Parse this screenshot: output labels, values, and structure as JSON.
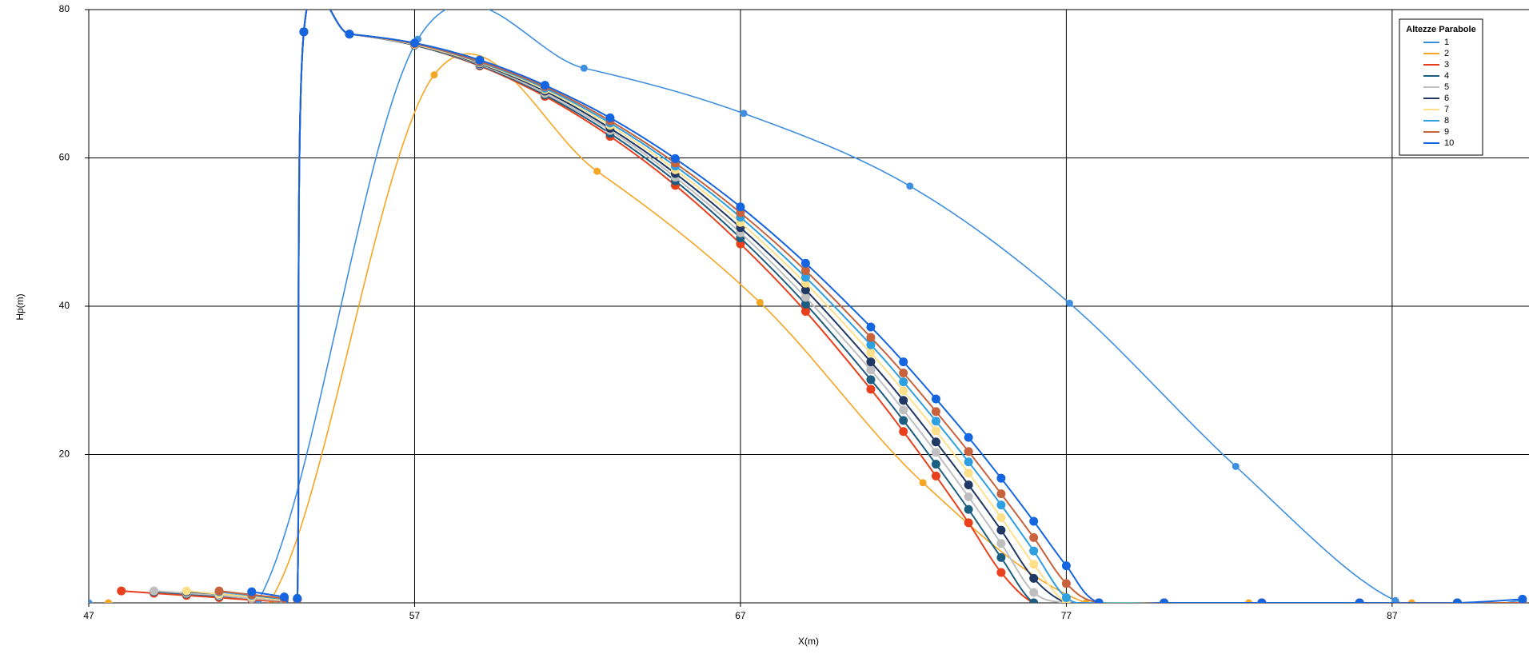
{
  "chart_data": {
    "type": "line",
    "x_label": "X(m)",
    "y_label": "Hp(m)",
    "legend_title": "Altezze Parabole",
    "legend": "upper-right",
    "grid": true,
    "xlim": [
      47,
      91.2
    ],
    "ylim": [
      0,
      80
    ],
    "xticks": [
      47,
      57,
      67,
      77,
      87
    ],
    "yticks": [
      20,
      40,
      60,
      80
    ],
    "x": [
      47,
      48,
      49,
      50,
      51,
      52,
      53,
      53.4,
      53.6,
      55,
      57,
      59,
      61,
      63,
      65,
      67,
      69,
      71,
      72,
      73,
      74,
      75,
      76,
      77,
      78,
      80,
      83,
      86,
      89,
      91
    ],
    "series": [
      {
        "name": "1",
        "color": "#3f8fe0",
        "x": [
          47,
          52.2,
          57.1,
          62.2,
          67.1,
          72.2,
          77.1,
          82.2,
          87.1,
          91
        ],
        "values": [
          0,
          0.3,
          76,
          72.1,
          66,
          56.2,
          40.4,
          18.4,
          0.3,
          0.3
        ]
      },
      {
        "name": "2",
        "color": "#f5a623",
        "x": [
          47.6,
          52.6,
          57.6,
          62.6,
          67.6,
          72.6,
          77.6,
          82.6,
          87.6
        ],
        "values": [
          0,
          0.5,
          71.2,
          58.2,
          40.5,
          16.2,
          0,
          0,
          0
        ]
      },
      {
        "name": "3",
        "color": "#e8401c",
        "values": [
          null,
          1.6,
          1.3,
          1.0,
          0.7,
          0.4,
          0.2,
          0.5,
          77,
          76.7,
          75.2,
          72.4,
          68.3,
          62.9,
          56.3,
          48.4,
          39.3,
          28.8,
          23.1,
          17.1,
          10.8,
          4.1,
          0,
          0,
          0,
          0,
          0,
          0,
          0,
          0
        ]
      },
      {
        "name": "4",
        "color": "#1b5e82",
        "values": [
          null,
          null,
          1.5,
          1.2,
          0.9,
          0.6,
          0.3,
          0.5,
          77,
          76.7,
          75.2,
          72.5,
          68.5,
          63.3,
          56.9,
          49.2,
          40.3,
          30.1,
          24.6,
          18.7,
          12.6,
          6.1,
          0,
          0,
          0,
          0,
          0,
          0,
          0,
          0
        ]
      },
      {
        "name": "5",
        "color": "#bfbfbf",
        "values": [
          null,
          null,
          1.6,
          1.3,
          1.0,
          0.6,
          0.3,
          0.5,
          77,
          76.7,
          75.3,
          72.6,
          68.7,
          63.7,
          57.4,
          49.9,
          41.2,
          31.4,
          26.0,
          20.3,
          14.3,
          8.0,
          1.4,
          0,
          0,
          0,
          0,
          0,
          0,
          0
        ]
      },
      {
        "name": "6",
        "color": "#1f3864",
        "values": [
          null,
          null,
          null,
          1.5,
          1.2,
          0.8,
          0.4,
          0.5,
          77,
          76.7,
          75.3,
          72.7,
          69.0,
          64.0,
          57.9,
          50.6,
          42.2,
          32.5,
          27.3,
          21.7,
          15.9,
          9.8,
          3.3,
          0,
          0,
          0,
          0,
          0,
          0,
          0
        ]
      },
      {
        "name": "7",
        "color": "#ffe08a",
        "values": [
          null,
          null,
          null,
          1.6,
          1.2,
          0.8,
          0.4,
          0.5,
          77,
          76.7,
          75.3,
          72.8,
          69.2,
          64.4,
          58.4,
          51.3,
          43.1,
          33.7,
          28.6,
          23.2,
          17.5,
          11.5,
          5.2,
          0,
          0,
          0,
          0,
          0,
          0,
          0
        ]
      },
      {
        "name": "8",
        "color": "#2e9fe0",
        "values": [
          null,
          null,
          null,
          null,
          1.5,
          1.0,
          0.5,
          0.5,
          77,
          76.7,
          75.4,
          72.9,
          69.4,
          64.7,
          58.9,
          52.0,
          43.9,
          34.8,
          29.8,
          24.5,
          19.0,
          13.2,
          7.0,
          0.7,
          0,
          0,
          0,
          0,
          0,
          0
        ]
      },
      {
        "name": "9",
        "color": "#c8623c",
        "values": [
          null,
          null,
          null,
          null,
          1.6,
          1.1,
          0.6,
          0.5,
          77,
          76.7,
          75.4,
          73.0,
          69.6,
          65.0,
          59.3,
          52.6,
          44.8,
          35.8,
          31.0,
          25.8,
          20.4,
          14.7,
          8.8,
          2.6,
          0,
          0,
          0,
          0,
          0,
          0
        ]
      },
      {
        "name": "10",
        "color": "#1565e0",
        "values": [
          null,
          null,
          null,
          null,
          null,
          1.5,
          0.8,
          0.6,
          77,
          76.7,
          75.5,
          73.2,
          69.8,
          65.4,
          59.9,
          53.4,
          45.8,
          37.2,
          32.5,
          27.5,
          22.3,
          16.8,
          11.0,
          5.0,
          0,
          0,
          0,
          0,
          0,
          0.5
        ]
      }
    ]
  }
}
